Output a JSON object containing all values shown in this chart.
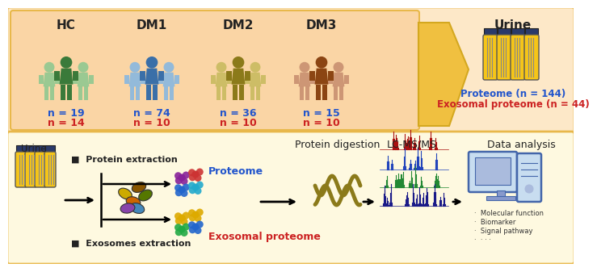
{
  "top_bg": "#fde8c8",
  "bottom_bg": "#fef9e0",
  "border_color": "#e8b84b",
  "left_panel_bg": "#fad5a5",
  "groups": [
    "HC",
    "DM1",
    "DM2",
    "DM3"
  ],
  "group_colors_dark": [
    "#3a7a3a",
    "#3a6fa8",
    "#8b7a1a",
    "#8b4513"
  ],
  "group_colors_light": [
    "#90c890",
    "#88b8e0",
    "#c8bb60",
    "#c89070"
  ],
  "group_n_blue": [
    "n = 19",
    "n = 74",
    "n = 36",
    "n = 15"
  ],
  "group_n_red": [
    "n = 14",
    "n = 10",
    "n = 10",
    "n = 10"
  ],
  "urine_title": "Urine",
  "proteome_text": "Proteome (n = 144)",
  "exosomal_text": "Exosomal proteome (n = 44)",
  "blue_text_color": "#2255cc",
  "red_text_color": "#cc2222",
  "arrow_color": "#f0c040",
  "arrow_edge_color": "#d4a820",
  "bottom_labels": [
    "Protein digestion",
    "LC-MS/MS",
    "Data analysis"
  ],
  "bottom_left_labels": [
    "Protein extraction",
    "Exosomes extraction"
  ],
  "proteome_label": "Proteome",
  "exosomal_label": "Exosomal proteome",
  "urine_label": "Urine",
  "data_analysis_items": [
    "Molecular function",
    "Biomarker",
    "Signal pathway",
    "· · ·"
  ],
  "tube_fill": "#f5c518",
  "tube_cap_color": "#2a3a6a",
  "tube_outline": "#555555",
  "spec_colors": [
    "#aa1111",
    "#2244bb",
    "#228833",
    "#1a1a88"
  ],
  "protein_colors_top": [
    "#882299",
    "#cc3333",
    "#2266cc",
    "#22aacc"
  ],
  "protein_colors_bot": [
    "#ddaa00",
    "#ddaa00",
    "#22aa44",
    "#2266cc"
  ],
  "exo_colors": [
    "#ccaa00",
    "#885500",
    "#cc6600",
    "#557700",
    "#4488bb",
    "#8844aa"
  ],
  "wavy_color": "#8b7a1a",
  "computer_body": "#c8ddf0",
  "computer_screen": "#aabbdd",
  "computer_edge": "#4466aa"
}
